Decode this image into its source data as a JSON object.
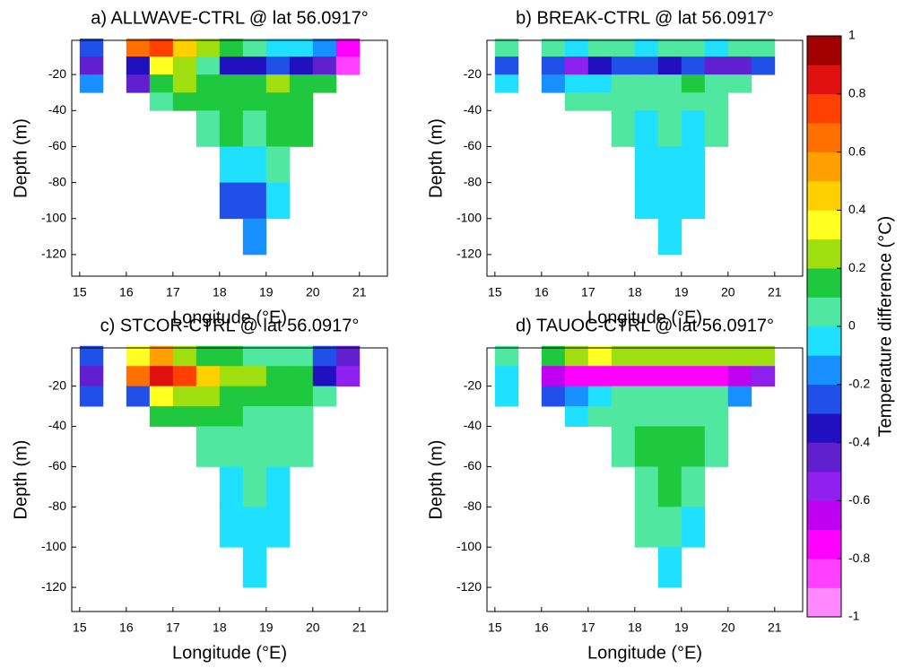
{
  "chart_data": [
    {
      "type": "contour",
      "title": "a) ALLWAVE-CTRL @ lat 56.0917°",
      "xlabel": "Longitude (°E)",
      "ylabel": "Depth (m)",
      "xlim": [
        14.83,
        21.6
      ],
      "ylim": [
        -132,
        -1
      ],
      "xticks": [
        15,
        16,
        17,
        18,
        19,
        20,
        21
      ],
      "yticks": [
        -20,
        -40,
        -60,
        -80,
        -100,
        -120
      ],
      "xbins": [
        15,
        15.5,
        16,
        16.5,
        17,
        17.5,
        18,
        18.5,
        19,
        19.5,
        20,
        20.5,
        21
      ],
      "ybins": [
        0,
        -10,
        -20,
        -30,
        -40,
        -60,
        -80,
        -100,
        -120
      ],
      "z": [
        [
          -0.3,
          null,
          0.6,
          0.7,
          0.4,
          0.2,
          0.1,
          0,
          -0.1,
          -0.1,
          -0.2,
          -0.8
        ],
        [
          -0.5,
          null,
          -0.4,
          0.3,
          0.2,
          0,
          -0.4,
          -0.4,
          -0.3,
          -0.4,
          -0.5,
          -0.9
        ],
        [
          -0.2,
          null,
          -0.5,
          0.1,
          0.2,
          0.1,
          0.1,
          0.1,
          0.2,
          0.1,
          0.1,
          null
        ],
        [
          null,
          null,
          null,
          0,
          0.1,
          0.1,
          0.1,
          0.1,
          0.1,
          0.1,
          null,
          null
        ],
        [
          null,
          null,
          null,
          null,
          null,
          0,
          0.1,
          0,
          0.1,
          0.1,
          null,
          null
        ],
        [
          null,
          null,
          null,
          null,
          null,
          null,
          -0.1,
          -0.1,
          0,
          null,
          null,
          null
        ],
        [
          null,
          null,
          null,
          null,
          null,
          null,
          -0.3,
          -0.3,
          -0.1,
          null,
          null,
          null
        ],
        [
          null,
          null,
          null,
          null,
          null,
          null,
          null,
          -0.2,
          null,
          null,
          null,
          null
        ]
      ]
    },
    {
      "type": "contour",
      "title": "b) BREAK-CTRL @ lat 56.0917°",
      "xlabel": "Longitude (°E)",
      "ylabel": "Depth (m)",
      "xlim": [
        14.83,
        21.6
      ],
      "ylim": [
        -132,
        -1
      ],
      "xticks": [
        15,
        16,
        17,
        18,
        19,
        20,
        21
      ],
      "yticks": [
        -20,
        -40,
        -60,
        -80,
        -100,
        -120
      ],
      "xbins": [
        15,
        15.5,
        16,
        16.5,
        17,
        17.5,
        18,
        18.5,
        19,
        19.5,
        20,
        20.5,
        21
      ],
      "ybins": [
        0,
        -10,
        -20,
        -30,
        -40,
        -60,
        -80,
        -100,
        -120
      ],
      "z": [
        [
          0,
          null,
          0,
          -0.1,
          0,
          0,
          -0.1,
          0,
          0,
          -0.1,
          0,
          0
        ],
        [
          -0.3,
          null,
          -0.3,
          -0.6,
          -0.4,
          -0.3,
          -0.3,
          -0.4,
          -0.3,
          -0.5,
          -0.5,
          -0.3
        ],
        [
          -0.1,
          null,
          -0.2,
          -0.1,
          -0.1,
          0,
          0,
          0,
          0.1,
          0,
          0,
          null
        ],
        [
          null,
          null,
          null,
          0,
          0,
          0,
          0,
          0,
          0,
          0,
          null,
          null
        ],
        [
          null,
          null,
          null,
          null,
          null,
          0,
          -0.1,
          0,
          -0.1,
          0,
          null,
          null
        ],
        [
          null,
          null,
          null,
          null,
          null,
          null,
          -0.1,
          -0.1,
          -0.1,
          null,
          null,
          null
        ],
        [
          null,
          null,
          null,
          null,
          null,
          null,
          -0.1,
          -0.1,
          -0.1,
          null,
          null,
          null
        ],
        [
          null,
          null,
          null,
          null,
          null,
          null,
          null,
          -0.1,
          null,
          null,
          null,
          null
        ]
      ]
    },
    {
      "type": "contour",
      "title": "c) STCOR-CTRL @ lat 56.0917°",
      "xlabel": "Longitude (°E)",
      "ylabel": "Depth (m)",
      "xlim": [
        14.83,
        21.6
      ],
      "ylim": [
        -132,
        -1
      ],
      "xticks": [
        15,
        16,
        17,
        18,
        19,
        20,
        21
      ],
      "yticks": [
        -20,
        -40,
        -60,
        -80,
        -100,
        -120
      ],
      "xbins": [
        15,
        15.5,
        16,
        16.5,
        17,
        17.5,
        18,
        18.5,
        19,
        19.5,
        20,
        20.5,
        21
      ],
      "ybins": [
        0,
        -10,
        -20,
        -30,
        -40,
        -60,
        -80,
        -100,
        -120
      ],
      "z": [
        [
          -0.3,
          null,
          0.3,
          0.5,
          0.2,
          0.1,
          0.1,
          0,
          0,
          0,
          -0.3,
          -0.5
        ],
        [
          -0.5,
          null,
          0.6,
          0.8,
          0.7,
          0.4,
          0.2,
          0.2,
          0.1,
          0.1,
          -0.4,
          -0.6
        ],
        [
          -0.3,
          null,
          -0.3,
          0.3,
          0.2,
          0.2,
          0.1,
          0.1,
          0.1,
          0.1,
          0,
          null
        ],
        [
          null,
          null,
          null,
          0.1,
          0.1,
          0.1,
          0.1,
          0,
          0,
          0,
          null,
          null
        ],
        [
          null,
          null,
          null,
          null,
          null,
          0,
          0,
          0,
          0,
          0,
          null,
          null
        ],
        [
          null,
          null,
          null,
          null,
          null,
          null,
          -0.1,
          0,
          -0.1,
          null,
          null,
          null
        ],
        [
          null,
          null,
          null,
          null,
          null,
          null,
          -0.1,
          -0.1,
          -0.1,
          null,
          null,
          null
        ],
        [
          null,
          null,
          null,
          null,
          null,
          null,
          null,
          -0.1,
          null,
          null,
          null,
          null
        ]
      ]
    },
    {
      "type": "contour",
      "title": "d) TAUOC-CTRL @ lat 56.0917°",
      "xlabel": "Longitude (°E)",
      "ylabel": "Depth (m)",
      "xlim": [
        14.83,
        21.6
      ],
      "ylim": [
        -132,
        -1
      ],
      "xticks": [
        15,
        16,
        17,
        18,
        19,
        20,
        21
      ],
      "yticks": [
        -20,
        -40,
        -60,
        -80,
        -100,
        -120
      ],
      "xbins": [
        15,
        15.5,
        16,
        16.5,
        17,
        17.5,
        18,
        18.5,
        19,
        19.5,
        20,
        20.5,
        21
      ],
      "ybins": [
        0,
        -10,
        -20,
        -30,
        -40,
        -60,
        -80,
        -100,
        -120
      ],
      "z": [
        [
          0,
          null,
          0.1,
          0.2,
          0.3,
          0.2,
          0.2,
          0.2,
          0.2,
          0.2,
          0.2,
          0.2
        ],
        [
          -0.1,
          null,
          -0.7,
          -0.8,
          -0.8,
          -0.8,
          -0.8,
          -0.8,
          -0.8,
          -0.8,
          -0.7,
          -0.6
        ],
        [
          -0.1,
          null,
          -0.3,
          -0.2,
          -0.1,
          0,
          0,
          0,
          0,
          0,
          -0.2,
          null
        ],
        [
          null,
          null,
          null,
          -0.1,
          0,
          0,
          0,
          0,
          0,
          0,
          null,
          null
        ],
        [
          null,
          null,
          null,
          null,
          null,
          0,
          0.1,
          0.1,
          0.1,
          0,
          null,
          null
        ],
        [
          null,
          null,
          null,
          null,
          null,
          null,
          0,
          0.1,
          0,
          null,
          null,
          null
        ],
        [
          null,
          null,
          null,
          null,
          null,
          null,
          0,
          0,
          -0.1,
          null,
          null,
          null
        ],
        [
          null,
          null,
          null,
          null,
          null,
          null,
          null,
          -0.1,
          null,
          null,
          null,
          null
        ]
      ]
    }
  ],
  "colorbar": {
    "label": "Temperature difference (°C)",
    "levels": [
      -1,
      -0.9,
      -0.8,
      -0.7,
      -0.6,
      -0.5,
      -0.4,
      -0.3,
      -0.2,
      -0.1,
      0,
      0.1,
      0.2,
      0.3,
      0.4,
      0.5,
      0.6,
      0.7,
      0.8,
      0.9,
      1
    ],
    "colors": [
      "#ff88ff",
      "#ff40ff",
      "#ff00ff",
      "#c000f0",
      "#9020f0",
      "#6020d0",
      "#2010c0",
      "#2050e8",
      "#1890ff",
      "#20e0ff",
      "#50e8a0",
      "#20c840",
      "#a0e010",
      "#ffff20",
      "#ffd000",
      "#ffa000",
      "#ff7000",
      "#ff4000",
      "#e01010",
      "#a00000"
    ],
    "ticks": [
      -1,
      -0.8,
      -0.6,
      -0.4,
      -0.2,
      0,
      0.2,
      0.4,
      0.6,
      0.8,
      1
    ]
  }
}
